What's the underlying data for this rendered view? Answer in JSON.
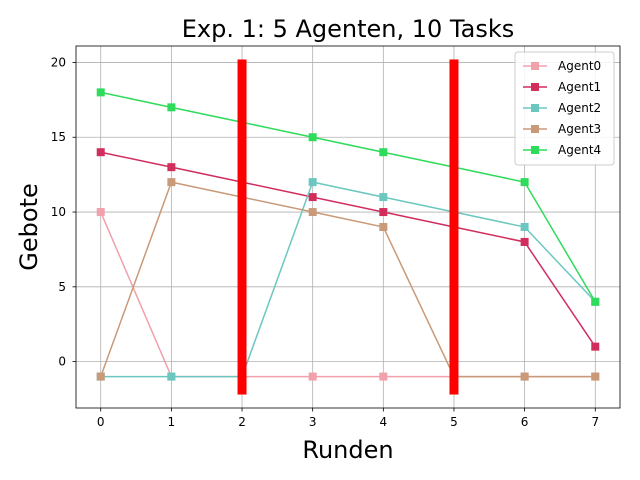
{
  "chart_data": {
    "type": "line",
    "title": "Exp. 1: 5 Agenten, 10 Tasks",
    "xlabel": "Runden",
    "ylabel": "Gebote",
    "x": [
      0,
      1,
      2,
      3,
      4,
      5,
      6,
      7
    ],
    "xticks": [
      "0",
      "1",
      "2",
      "3",
      "4",
      "5",
      "6",
      "7"
    ],
    "yticks": [
      "0",
      "5",
      "10",
      "15",
      "20"
    ],
    "xlim": [
      -0.35,
      7.35
    ],
    "ylim": [
      -3.1,
      21.1
    ],
    "grid": true,
    "legend_position": "top-right",
    "marker": "square",
    "series": [
      {
        "name": "Agent0",
        "color": "#f0a1ab",
        "values": [
          10,
          -1,
          -1,
          -1,
          -1,
          -1,
          -1,
          -1
        ]
      },
      {
        "name": "Agent1",
        "color": "#d12d5d",
        "values": [
          14,
          13,
          12,
          11,
          10,
          9,
          8,
          1
        ]
      },
      {
        "name": "Agent2",
        "color": "#6cc7c0",
        "values": [
          -1,
          -1,
          -1,
          12,
          11,
          10,
          9,
          4
        ]
      },
      {
        "name": "Agent3",
        "color": "#c99a78",
        "values": [
          -1,
          12,
          11,
          10,
          9,
          -1,
          -1,
          -1
        ]
      },
      {
        "name": "Agent4",
        "color": "#2edb5b",
        "values": [
          18,
          17,
          16,
          15,
          14,
          13,
          12,
          4
        ]
      }
    ],
    "vertical_markers": [
      {
        "x": 2,
        "y_range": [
          -2.2,
          20.2
        ],
        "color": "#ff0000"
      },
      {
        "x": 5,
        "y_range": [
          -2.2,
          20.2
        ],
        "color": "#ff0000"
      }
    ]
  }
}
